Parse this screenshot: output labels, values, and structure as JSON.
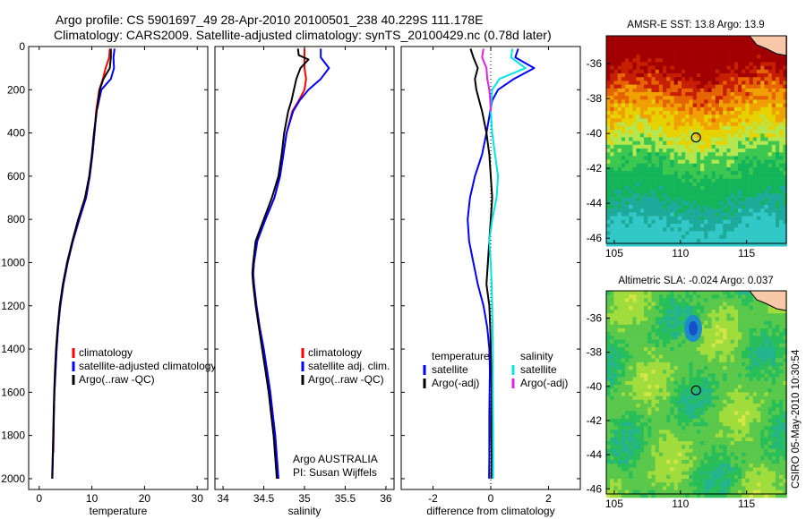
{
  "header": {
    "line1": "Argo profile: CS 5901697_49 28-Apr-2010 20100501_238 40.229S 111.178E",
    "line2": "Climatology: CARS2009. Satellite-adjusted climatology: synTS_20100429.nc (0.78d later)"
  },
  "colors": {
    "red": "#ff0000",
    "blue": "#0000ff",
    "black": "#000000",
    "cyan": "#00e5e5",
    "magenta": "#e020e0"
  },
  "chart_data": [
    {
      "type": "line",
      "xlabel": "temperature",
      "x_ticks": [
        0,
        10,
        20,
        30
      ],
      "xlim": [
        -2,
        32
      ],
      "ylim": [
        0,
        2050
      ],
      "y_ticks": [
        0,
        200,
        400,
        600,
        800,
        1000,
        1200,
        1400,
        1600,
        1800,
        2000
      ],
      "y_reversed": true,
      "legend": {
        "position": "right",
        "entries": [
          "climatology",
          "satellite-adjusted climatology",
          "Argo(..raw -QC)"
        ]
      },
      "series": [
        {
          "name": "climatology",
          "color": "red",
          "depth": [
            10,
            50,
            100,
            150,
            200,
            300,
            400,
            500,
            600,
            700,
            800,
            900,
            1000,
            1100,
            1200,
            1300,
            1400,
            1500,
            1600,
            1700,
            1800,
            1880
          ],
          "values": [
            13.4,
            13.3,
            12.6,
            12.1,
            11.4,
            10.8,
            10.5,
            10.1,
            9.6,
            8.9,
            7.6,
            6.4,
            5.4,
            4.6,
            4.0,
            3.6,
            3.3,
            3.1,
            2.9,
            2.8,
            2.75,
            2.7
          ]
        },
        {
          "name": "satellite-adjusted climatology",
          "color": "blue",
          "depth": [
            10,
            50,
            100,
            150,
            200,
            300,
            400,
            500,
            600,
            700,
            800,
            900,
            1000,
            1100,
            1200,
            1300,
            1400,
            1500,
            1600,
            1700,
            1800,
            1900,
            2000
          ],
          "values": [
            14.3,
            14.1,
            14.2,
            13.6,
            11.8,
            10.9,
            10.5,
            10.1,
            9.6,
            8.9,
            7.6,
            6.4,
            5.4,
            4.6,
            4.0,
            3.6,
            3.3,
            3.1,
            2.9,
            2.8,
            2.7,
            2.6,
            2.5
          ]
        },
        {
          "name": "Argo(..raw -QC)",
          "color": "black",
          "depth": [
            10,
            50,
            100,
            150,
            200,
            300,
            400,
            500,
            600,
            700,
            800,
            900,
            1000,
            1100,
            1200,
            1300,
            1400,
            1500,
            1600,
            1700,
            1800,
            1900,
            2000
          ],
          "values": [
            13.6,
            13.6,
            13.4,
            12.2,
            11.5,
            10.9,
            10.4,
            10.0,
            9.5,
            8.7,
            7.4,
            6.3,
            5.3,
            4.5,
            3.9,
            3.5,
            3.2,
            3.0,
            2.85,
            2.75,
            2.65,
            2.55,
            2.45
          ]
        }
      ]
    },
    {
      "type": "line",
      "xlabel": "salinity",
      "x_ticks": [
        34,
        34.5,
        35,
        35.5,
        36
      ],
      "x_ticklabels": [
        "34",
        "34.5",
        "35",
        "35.5",
        "36"
      ],
      "xlim": [
        33.9,
        36.1
      ],
      "ylim": [
        0,
        2050
      ],
      "y_reversed": true,
      "legend": {
        "position": "right",
        "entries": [
          "climatology",
          "satellite adj. clim.",
          "Argo(..raw -QC)"
        ]
      },
      "annotation": [
        "Argo AUSTRALIA",
        "PI: Susan Wijffels"
      ],
      "series": [
        {
          "name": "climatology",
          "color": "red",
          "depth": [
            10,
            50,
            100,
            150,
            200,
            250,
            300,
            400,
            500,
            600,
            700,
            800,
            900,
            1000,
            1050,
            1100,
            1200,
            1300,
            1400,
            1500,
            1600,
            1700,
            1800,
            1900,
            2000
          ],
          "values": [
            35.0,
            35.0,
            35.0,
            35.02,
            35.0,
            34.93,
            34.85,
            34.78,
            34.74,
            34.7,
            34.63,
            34.52,
            34.42,
            34.38,
            34.37,
            34.38,
            34.41,
            34.45,
            34.5,
            34.54,
            34.58,
            34.61,
            34.64,
            34.66,
            34.68
          ]
        },
        {
          "name": "satellite adj. clim.",
          "color": "blue",
          "depth": [
            10,
            50,
            100,
            150,
            200,
            250,
            300,
            400,
            500,
            600,
            700,
            800,
            900,
            1000,
            1050,
            1100,
            1200,
            1300,
            1400,
            1500,
            1600,
            1700,
            1800,
            1900,
            2000
          ],
          "values": [
            35.2,
            35.2,
            35.3,
            35.2,
            35.05,
            34.94,
            34.86,
            34.78,
            34.74,
            34.7,
            34.63,
            34.52,
            34.42,
            34.38,
            34.37,
            34.38,
            34.41,
            34.45,
            34.5,
            34.54,
            34.58,
            34.61,
            34.64,
            34.66,
            34.68
          ]
        },
        {
          "name": "Argo(..raw -QC)",
          "color": "black",
          "depth": [
            10,
            40,
            60,
            100,
            150,
            200,
            250,
            300,
            400,
            500,
            600,
            700,
            800,
            900,
            1000,
            1050,
            1100,
            1200,
            1300,
            1400,
            1500,
            1600,
            1700,
            1800,
            1900,
            2000
          ],
          "values": [
            34.92,
            34.93,
            35.05,
            34.95,
            34.9,
            34.87,
            34.84,
            34.8,
            34.75,
            34.72,
            34.68,
            34.6,
            34.5,
            34.4,
            34.37,
            34.36,
            34.37,
            34.4,
            34.44,
            34.48,
            34.52,
            34.56,
            34.59,
            34.62,
            34.64,
            34.66
          ]
        }
      ]
    },
    {
      "type": "line",
      "xlabel": "difference from climatology",
      "x_ticks": [
        -2,
        0,
        2
      ],
      "xlim": [
        -3.1,
        3.1
      ],
      "ylim": [
        0,
        2050
      ],
      "y_reversed": true,
      "zero_line": "dotted",
      "legend": {
        "position": "right",
        "groups": [
          {
            "title": "temperature",
            "entries": [
              "satellite",
              "Argo(-adj)"
            ]
          },
          {
            "title": "salinity",
            "entries": [
              "satellite",
              "Argo(-adj)"
            ]
          }
        ]
      },
      "series": [
        {
          "name": "temperature satellite",
          "color": "blue",
          "depth": [
            10,
            50,
            100,
            150,
            200,
            250,
            300,
            400,
            500,
            600,
            700,
            800,
            900,
            1000,
            1100,
            1200,
            1300,
            1400,
            1500,
            1600,
            1700,
            1800,
            1900,
            2000
          ],
          "values": [
            0.95,
            0.85,
            1.5,
            0.8,
            0.25,
            0.05,
            -0.02,
            -0.15,
            -0.3,
            -0.55,
            -0.72,
            -0.8,
            -0.75,
            -0.6,
            -0.45,
            -0.25,
            -0.12,
            -0.05,
            -0.03,
            -0.04,
            -0.05,
            -0.05,
            -0.05,
            -0.06
          ]
        },
        {
          "name": "temperature Argo(-adj)",
          "color": "black",
          "depth": [
            10,
            50,
            100,
            150,
            200,
            300,
            400,
            500,
            600,
            700,
            800,
            900,
            1000,
            1100,
            1200,
            1300,
            1400,
            1500,
            1600,
            1700,
            1800,
            1900,
            2000
          ],
          "values": [
            -0.7,
            -0.6,
            -0.45,
            -0.55,
            -0.5,
            -0.3,
            -0.15,
            -0.05,
            0.0,
            0.05,
            0.0,
            -0.05,
            -0.1,
            -0.15,
            -0.05,
            -0.02,
            0.0,
            0.02,
            0.03,
            0.02,
            0.02,
            0.03,
            0.02
          ]
        },
        {
          "name": "salinity satellite",
          "color": "cyan",
          "depth": [
            10,
            50,
            100,
            150,
            200,
            300,
            400,
            500,
            600,
            700,
            800,
            900,
            1000,
            1100,
            1200,
            1400,
            1600,
            1800,
            2000
          ],
          "values": [
            0.75,
            0.7,
            1.2,
            0.3,
            0.05,
            0.0,
            0.05,
            0.15,
            0.25,
            0.2,
            0.05,
            -0.05,
            0.0,
            0.03,
            0.05,
            0.07,
            0.07,
            0.08,
            0.08
          ]
        },
        {
          "name": "salinity Argo(-adj)",
          "color": "magenta",
          "depth": [
            10,
            50,
            100,
            150,
            200,
            250,
            300
          ],
          "values": [
            -0.25,
            -0.3,
            -0.15,
            -0.12,
            -0.05,
            -0.02,
            0.0
          ]
        }
      ]
    },
    {
      "type": "heatmap",
      "title": "AMSR-E SST: 13.8 Argo: 13.9",
      "x_ticks": [
        105,
        110,
        115
      ],
      "y_ticks": [
        -36,
        -38,
        -40,
        -42,
        -44,
        -46
      ],
      "xlim": [
        104.4,
        118.0
      ],
      "ylim": [
        -46.3,
        -34.4
      ],
      "marker": {
        "lon": 111.18,
        "lat": -40.23
      }
    },
    {
      "type": "heatmap",
      "title": "Altimetric SLA: -0.024 Argo: 0.037",
      "x_ticks": [
        105,
        110,
        115
      ],
      "y_ticks": [
        -36,
        -38,
        -40,
        -42,
        -44,
        -46
      ],
      "xlim": [
        104.4,
        118.0
      ],
      "ylim": [
        -46.3,
        -34.4
      ],
      "marker": {
        "lon": 111.18,
        "lat": -40.23
      }
    }
  ],
  "side_label": "CSIRO 05-May-2010 10:30:54"
}
